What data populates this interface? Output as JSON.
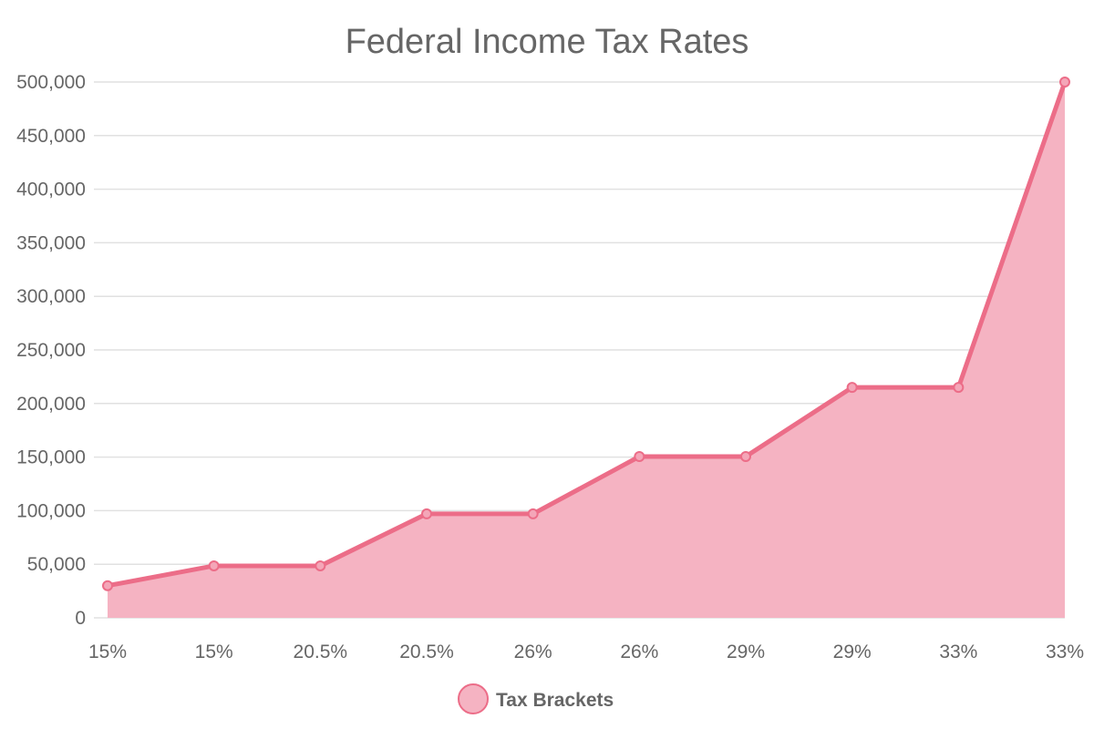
{
  "chart_data": {
    "type": "area",
    "title": "Federal Income Tax Rates",
    "xlabel": "",
    "ylabel": "",
    "categories": [
      "15%",
      "15%",
      "20.5%",
      "20.5%",
      "26%",
      "26%",
      "29%",
      "29%",
      "33%",
      "33%"
    ],
    "series": [
      {
        "name": "Tax Brackets",
        "values": [
          30000,
          48500,
          48500,
          97000,
          97000,
          150500,
          150500,
          215000,
          215000,
          500000
        ]
      }
    ],
    "ylim": [
      0,
      500000
    ],
    "y_ticks": [
      "0",
      "50,000",
      "100,000",
      "150,000",
      "200,000",
      "250,000",
      "300,000",
      "350,000",
      "400,000",
      "450,000",
      "500,000"
    ],
    "grid": true,
    "legend_position": "bottom",
    "colors": {
      "line": "#ec6d88",
      "fill": "#f5b3c2",
      "point_fill": "#f4a6b8"
    }
  }
}
